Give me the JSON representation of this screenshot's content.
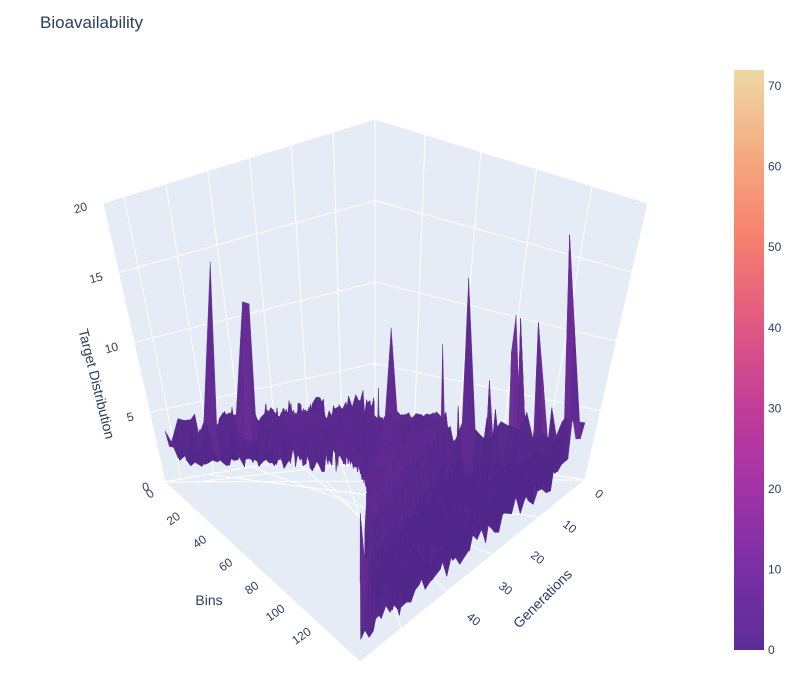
{
  "chart_data": {
    "type": "surface",
    "title": "Bioavailability",
    "x": {
      "label": "Generations",
      "range": [
        0,
        49
      ],
      "ticks": [
        0,
        10,
        20,
        30,
        40
      ]
    },
    "y": {
      "label": "Bins",
      "range": [
        0,
        130
      ],
      "ticks": [
        0,
        20,
        40,
        60,
        80,
        100,
        120
      ]
    },
    "z": {
      "label": "Target Distribution",
      "range": [
        0,
        20
      ],
      "ticks": [
        0,
        5,
        10,
        15,
        20
      ]
    },
    "colorbar": {
      "min": 0,
      "max": 72,
      "ticks": [
        0,
        10,
        20,
        30,
        40,
        50,
        60,
        70
      ]
    },
    "colorscale": [
      "#0d0887",
      "#46039f",
      "#7201a8",
      "#9c179e",
      "#bd3786",
      "#d8576b",
      "#ed7953",
      "#fb9f3a",
      "#fdca26",
      "#f0f921"
    ],
    "grid": true,
    "legend": "colorbar-right"
  }
}
